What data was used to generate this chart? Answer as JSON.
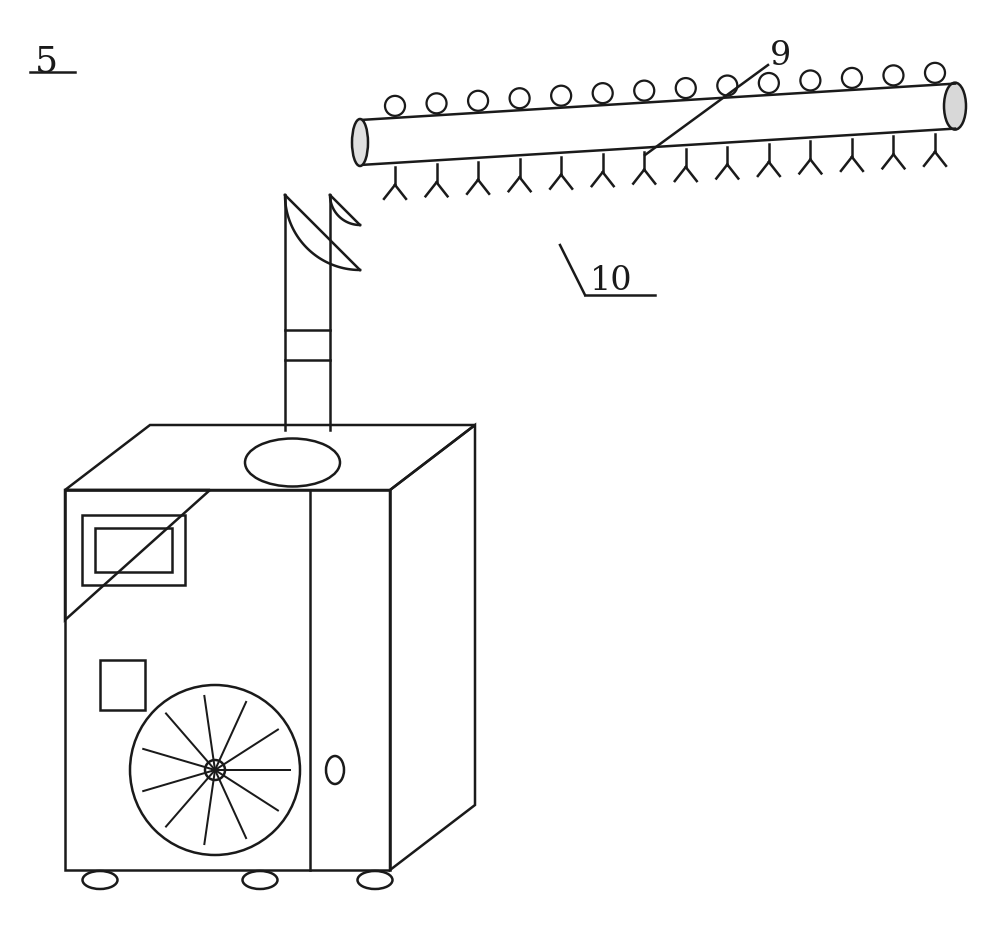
{
  "bg_color": "#ffffff",
  "line_color": "#1a1a1a",
  "label_5": "5",
  "label_9": "9",
  "label_10": "10",
  "label_fontsize": 22,
  "lw": 1.8
}
